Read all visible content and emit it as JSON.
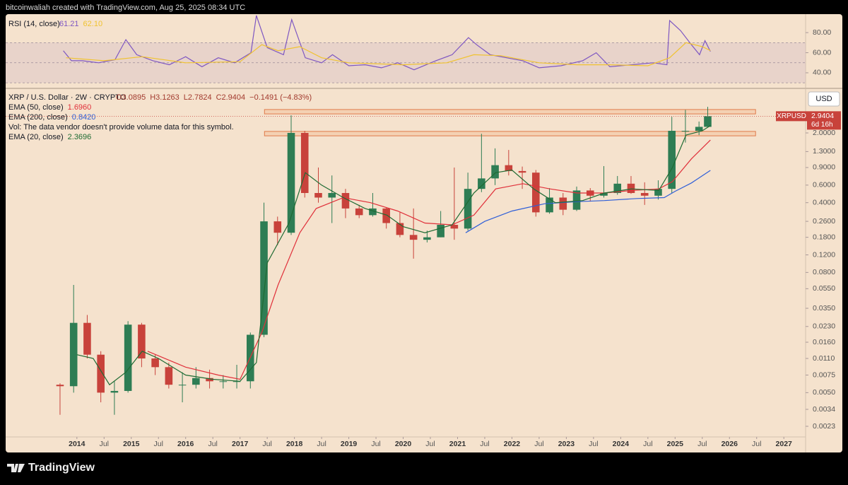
{
  "header": {
    "credit": "bitcoinwaliah created with TradingView.com, Aug 25, 2025 08:34 UTC",
    "logo": "TradingView"
  },
  "chart_data": [
    {
      "type": "line",
      "title": "RSI (14, close)",
      "xlim": [
        2012.69,
        2027.4
      ],
      "ylim": [
        28,
        97
      ],
      "yticks": [
        {
          "value": 80,
          "label": "80.00"
        },
        {
          "value": 60,
          "label": "60.00"
        },
        {
          "value": 40,
          "label": "40.00"
        }
      ],
      "levels": [
        70,
        50,
        30
      ],
      "band_color": "#d9c2c8",
      "series": [
        {
          "color": "#7e57c2",
          "value_label": "61.21",
          "x": [
            2013.75,
            2013.9,
            2014.1,
            2014.4,
            2014.7,
            2014.9,
            2015.1,
            2015.4,
            2015.7,
            2016.0,
            2016.3,
            2016.6,
            2016.9,
            2017.2,
            2017.3,
            2017.5,
            2017.8,
            2017.95,
            2018.2,
            2018.5,
            2018.7,
            2019.0,
            2019.3,
            2019.6,
            2019.9,
            2020.2,
            2020.6,
            2020.9,
            2021.2,
            2021.35,
            2021.6,
            2021.9,
            2022.2,
            2022.5,
            2022.9,
            2023.3,
            2023.55,
            2023.8,
            2024.2,
            2024.6,
            2024.85,
            2024.9,
            2025.1,
            2025.3,
            2025.45,
            2025.55,
            2025.65
          ],
          "values": [
            62,
            52,
            52,
            50,
            53,
            73,
            58,
            52,
            48,
            56,
            46,
            55,
            50,
            60,
            97,
            65,
            58,
            93,
            55,
            50,
            58,
            47,
            48,
            45,
            50,
            43,
            52,
            58,
            75,
            68,
            58,
            55,
            52,
            45,
            47,
            52,
            60,
            46,
            48,
            50,
            48,
            92,
            82,
            68,
            58,
            72,
            61.21
          ]
        },
        {
          "color": "#f0c330",
          "value_label": "62.10",
          "x": [
            2013.8,
            2014.5,
            2015.2,
            2016.0,
            2017.0,
            2017.4,
            2017.7,
            2018.1,
            2018.5,
            2019.0,
            2020.0,
            2020.8,
            2021.3,
            2021.8,
            2022.5,
            2023.2,
            2023.8,
            2024.5,
            2024.9,
            2025.2,
            2025.5,
            2025.65
          ],
          "values": [
            55,
            52,
            56,
            50,
            51,
            68,
            62,
            66,
            55,
            50,
            48,
            50,
            58,
            57,
            50,
            48,
            48,
            47,
            55,
            70,
            66,
            62.1
          ]
        }
      ]
    },
    {
      "type": "candlestick",
      "title": "XRP / U.S. Dollar · 2W · CRYPTO",
      "ohlc": [
        "O3.0895",
        "H3.1263",
        "L2.7824",
        "C2.9404",
        "−0.1491 (−4.83%)"
      ],
      "note": "Vol: The data vendor doesn't provide volume data for this symbol.",
      "currency": "USD",
      "symbol_tag": "XRPUSD",
      "last_label": "2.9404",
      "countdown": "6d 16h",
      "log_scale": true,
      "grid": false,
      "up_color": "#2e7d54",
      "down_color": "#c8423b",
      "xlim": [
        2012.69,
        2027.4
      ],
      "ylim": [
        0.0018,
        5.15
      ],
      "xticks": [
        2014,
        {
          "value": 2014.5,
          "label": "Jul"
        },
        2015,
        {
          "value": 2015.5,
          "label": "Jul"
        },
        2016,
        {
          "value": 2016.5,
          "label": "Jul"
        },
        2017,
        {
          "value": 2017.5,
          "label": "Jul"
        },
        2018,
        {
          "value": 2018.5,
          "label": "Jul"
        },
        2019,
        {
          "value": 2019.5,
          "label": "Jul"
        },
        2020,
        {
          "value": 2020.5,
          "label": "Jul"
        },
        2021,
        {
          "value": 2021.5,
          "label": "Jul"
        },
        2022,
        {
          "value": 2022.5,
          "label": "Jul"
        },
        2023,
        {
          "value": 2023.5,
          "label": "Jul"
        },
        2024,
        {
          "value": 2024.5,
          "label": "Jul"
        },
        2025,
        {
          "value": 2025.5,
          "label": "Jul"
        },
        2026,
        {
          "value": 2026.5,
          "label": "Jul"
        },
        2027
      ],
      "yticks": [
        {
          "value": 2,
          "label": "2.0000"
        },
        {
          "value": 1.3,
          "label": "1.3000"
        },
        {
          "value": 0.9,
          "label": "0.9000"
        },
        {
          "value": 0.6,
          "label": "0.6000"
        },
        {
          "value": 0.4,
          "label": "0.4000"
        },
        {
          "value": 0.26,
          "label": "0.2600"
        },
        {
          "value": 0.18,
          "label": "0.1800"
        },
        {
          "value": 0.12,
          "label": "0.1200"
        },
        {
          "value": 0.08,
          "label": "0.0800"
        },
        {
          "value": 0.055,
          "label": "0.0550"
        },
        {
          "value": 0.035,
          "label": "0.0350"
        },
        {
          "value": 0.023,
          "label": "0.0230"
        },
        {
          "value": 0.016,
          "label": "0.0160"
        },
        {
          "value": 0.011,
          "label": "0.0110"
        },
        0.0075,
        {
          "value": 0.005,
          "label": "0.0050"
        },
        0.0034,
        0.0023
      ],
      "x": [
        2013.69,
        2013.94,
        2014.19,
        2014.44,
        2014.69,
        2014.94,
        2015.19,
        2015.44,
        2015.69,
        2015.94,
        2016.19,
        2016.44,
        2016.69,
        2016.94,
        2017.19,
        2017.44,
        2017.69,
        2017.94,
        2018.19,
        2018.44,
        2018.69,
        2018.94,
        2019.19,
        2019.44,
        2019.69,
        2019.94,
        2020.19,
        2020.44,
        2020.69,
        2020.94,
        2021.19,
        2021.44,
        2021.69,
        2021.94,
        2022.19,
        2022.44,
        2022.69,
        2022.94,
        2023.19,
        2023.44,
        2023.69,
        2023.94,
        2024.19,
        2024.44,
        2024.69,
        2024.94,
        2025.19,
        2025.44,
        2025.6
      ],
      "open": [
        0.006,
        0.0058,
        0.025,
        0.012,
        0.005,
        0.0052,
        0.024,
        0.011,
        0.009,
        0.006,
        0.006,
        0.007,
        0.0065,
        0.0065,
        0.0065,
        0.019,
        0.26,
        0.2,
        2.0,
        0.5,
        0.45,
        0.5,
        0.35,
        0.3,
        0.35,
        0.25,
        0.19,
        0.17,
        0.18,
        0.24,
        0.22,
        0.55,
        0.7,
        0.95,
        0.83,
        0.8,
        0.32,
        0.45,
        0.34,
        0.53,
        0.47,
        0.5,
        0.62,
        0.5,
        0.47,
        0.55,
        2.1,
        2.1,
        2.3
      ],
      "high": [
        0.0062,
        0.06,
        0.03,
        0.013,
        0.0065,
        0.026,
        0.025,
        0.012,
        0.01,
        0.008,
        0.009,
        0.0085,
        0.0075,
        0.0095,
        0.02,
        0.4,
        0.29,
        3.0,
        2.1,
        0.9,
        0.75,
        0.55,
        0.38,
        0.5,
        0.36,
        0.32,
        0.35,
        0.21,
        0.33,
        0.9,
        0.8,
        1.96,
        1.4,
        1.35,
        0.92,
        0.85,
        0.56,
        0.5,
        0.58,
        0.56,
        0.93,
        0.74,
        0.74,
        0.64,
        0.67,
        2.9,
        3.4,
        2.6,
        3.65
      ],
      "low": [
        0.003,
        0.005,
        0.011,
        0.004,
        0.003,
        0.005,
        0.009,
        0.0075,
        0.0055,
        0.004,
        0.0055,
        0.0055,
        0.0055,
        0.0055,
        0.0055,
        0.018,
        0.15,
        0.19,
        0.45,
        0.4,
        0.25,
        0.28,
        0.28,
        0.29,
        0.22,
        0.18,
        0.11,
        0.16,
        0.18,
        0.17,
        0.21,
        0.51,
        0.6,
        0.75,
        0.55,
        0.29,
        0.31,
        0.3,
        0.33,
        0.41,
        0.45,
        0.48,
        0.49,
        0.38,
        0.43,
        0.5,
        1.6,
        1.9,
        2.3
      ],
      "close": [
        0.0058,
        0.025,
        0.012,
        0.005,
        0.0052,
        0.024,
        0.011,
        0.009,
        0.006,
        0.006,
        0.007,
        0.0065,
        0.0065,
        0.0065,
        0.019,
        0.26,
        0.2,
        2.0,
        0.5,
        0.45,
        0.5,
        0.35,
        0.3,
        0.35,
        0.25,
        0.19,
        0.17,
        0.18,
        0.24,
        0.22,
        0.55,
        0.7,
        0.95,
        0.83,
        0.8,
        0.32,
        0.45,
        0.34,
        0.53,
        0.47,
        0.5,
        0.62,
        0.5,
        0.47,
        0.55,
        2.1,
        2.1,
        2.3,
        2.9404
      ],
      "zones": [
        {
          "color": "#f4b183",
          "x": [
            2017.45,
            2026.48
          ],
          "y": [
            3.1,
            3.43
          ]
        },
        {
          "color": "#f4b183",
          "x": [
            2017.45,
            2026.48
          ],
          "y": [
            1.87,
            2.07
          ]
        }
      ],
      "lines": [
        {
          "name": "EMA (50, close)",
          "value_label": "1.6960",
          "color": "#e0303a",
          "x": [
            2015.3,
            2016.0,
            2016.6,
            2017.0,
            2017.4,
            2017.7,
            2018.1,
            2018.4,
            2018.9,
            2019.4,
            2019.9,
            2020.4,
            2020.9,
            2021.3,
            2021.7,
            2022.2,
            2022.7,
            2023.2,
            2023.7,
            2024.2,
            2024.7,
            2024.95,
            2025.3,
            2025.65
          ],
          "values": [
            0.013,
            0.009,
            0.0075,
            0.0068,
            0.02,
            0.06,
            0.2,
            0.35,
            0.45,
            0.4,
            0.33,
            0.25,
            0.24,
            0.3,
            0.55,
            0.62,
            0.55,
            0.5,
            0.5,
            0.53,
            0.55,
            0.65,
            1.1,
            1.696
          ]
        },
        {
          "name": "EMA (200, close)",
          "value_label": "0.8420",
          "color": "#2f5fd8",
          "x": [
            2021.15,
            2021.5,
            2022.0,
            2022.6,
            2023.2,
            2023.7,
            2024.3,
            2024.8,
            2025.0,
            2025.3,
            2025.65
          ],
          "values": [
            0.2,
            0.26,
            0.33,
            0.39,
            0.41,
            0.42,
            0.44,
            0.45,
            0.52,
            0.63,
            0.842
          ]
        },
        {
          "name": "EMA (20, close)",
          "value_label": "2.3696",
          "color": "#1f6b33",
          "x": [
            2014.0,
            2014.3,
            2014.6,
            2014.9,
            2015.2,
            2015.5,
            2016.0,
            2016.5,
            2017.0,
            2017.3,
            2017.5,
            2017.9,
            2018.2,
            2018.5,
            2018.9,
            2019.3,
            2019.7,
            2020.0,
            2020.4,
            2020.9,
            2021.3,
            2021.7,
            2022.0,
            2022.4,
            2022.8,
            2023.3,
            2023.7,
            2024.2,
            2024.7,
            2024.95,
            2025.2,
            2025.5,
            2025.65
          ],
          "values": [
            0.012,
            0.011,
            0.006,
            0.008,
            0.013,
            0.011,
            0.0075,
            0.0068,
            0.0065,
            0.01,
            0.1,
            0.25,
            0.8,
            0.6,
            0.45,
            0.35,
            0.3,
            0.23,
            0.2,
            0.24,
            0.5,
            0.8,
            0.85,
            0.55,
            0.4,
            0.42,
            0.5,
            0.55,
            0.53,
            0.9,
            1.9,
            2.1,
            2.3696
          ]
        }
      ]
    }
  ]
}
